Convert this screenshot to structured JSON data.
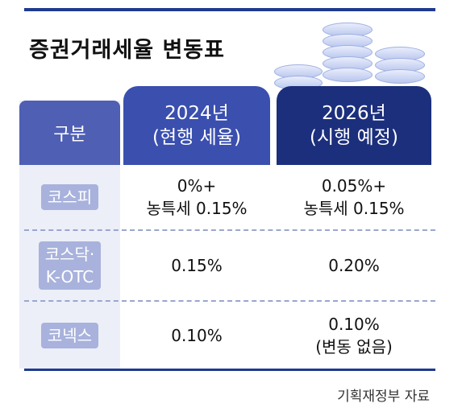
{
  "title": "증권거래세율 변동표",
  "header": {
    "category": "구분",
    "col_2024_year": "2024년",
    "col_2024_note": "(현행 세율)",
    "col_2026_year": "2026년",
    "col_2026_note": "(시행 예정)"
  },
  "rows": [
    {
      "label_line1": "코스피",
      "label_line2": "",
      "v2024_line1": "0%+",
      "v2024_line2": "농특세 0.15%",
      "v2026_line1": "0.05%+",
      "v2026_line2": "농특세 0.15%"
    },
    {
      "label_line1": "코스닥·",
      "label_line2": "K-OTC",
      "v2024_line1": "0.15%",
      "v2024_line2": "",
      "v2026_line1": "0.20%",
      "v2026_line2": ""
    },
    {
      "label_line1": "코넥스",
      "label_line2": "",
      "v2024_line1": "0.10%",
      "v2024_line2": "",
      "v2026_line1": "0.10%",
      "v2026_line2": "(변동 없음)"
    }
  ],
  "source": "기획재정부 자료"
}
